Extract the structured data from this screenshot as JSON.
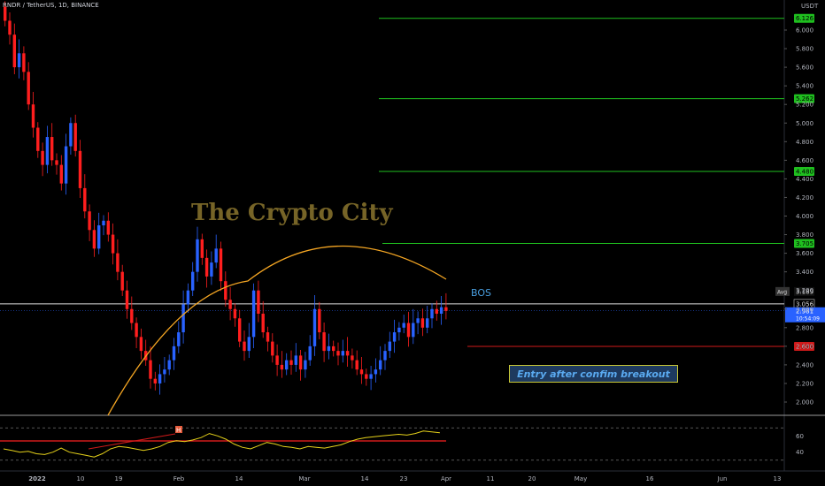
{
  "header": {
    "symbol_line": "RNDR / TetherUS, 1D, BINANCE"
  },
  "watermark": {
    "text": "The Crypto City"
  },
  "annotations": {
    "bos": "BOS",
    "entry": "Entry after confim breakout"
  },
  "axis": {
    "unit": "USDT"
  },
  "colors": {
    "bull": "#2962ff",
    "bear": "#ff1e1e",
    "arc": "#f5a623",
    "target": "#1fbf1f",
    "stop": "#d01a1a",
    "rsi": "#e6d21a"
  },
  "chart_data": {
    "type": "candlestick",
    "y_ticks": [
      6.0,
      5.8,
      5.6,
      5.4,
      5.2,
      5.0,
      4.8,
      4.6,
      4.4,
      4.2,
      4.0,
      3.8,
      3.6,
      3.4,
      3.2,
      3.0,
      2.8,
      2.6,
      2.4,
      2.2,
      2.0
    ],
    "x_ticks": [
      "2022",
      "10",
      "19",
      "Feb",
      "14",
      "Mar",
      "14",
      "23",
      "Apr",
      "11",
      "20",
      "May",
      "16",
      "Jun",
      "13"
    ],
    "price_levels": [
      {
        "label": "6.126",
        "value": 6.126,
        "kind": "target"
      },
      {
        "label": "5.262",
        "value": 5.262,
        "kind": "target"
      },
      {
        "label": "4.480",
        "value": 4.48,
        "kind": "target"
      },
      {
        "label": "3.705",
        "value": 3.705,
        "kind": "target"
      },
      {
        "label": "2.599",
        "value": 2.599,
        "kind": "stop"
      }
    ],
    "current": {
      "avg_label": "Avg",
      "avg_value": "3.189",
      "bos_value": "3.056",
      "last": "2.981",
      "countdown": "10:54:09"
    },
    "closes": [
      6.1,
      5.95,
      5.6,
      5.75,
      5.55,
      5.2,
      4.95,
      4.7,
      4.55,
      4.85,
      4.6,
      4.55,
      4.35,
      4.75,
      5.0,
      4.7,
      4.3,
      4.05,
      3.85,
      3.65,
      3.9,
      3.95,
      3.8,
      3.6,
      3.4,
      3.2,
      3.0,
      2.85,
      2.7,
      2.55,
      2.45,
      2.25,
      2.2,
      2.3,
      2.35,
      2.45,
      2.6,
      2.75,
      3.05,
      3.2,
      3.4,
      3.75,
      3.55,
      3.35,
      3.5,
      3.65,
      3.3,
      3.1,
      3.0,
      2.9,
      2.65,
      2.55,
      2.7,
      3.2,
      2.95,
      2.75,
      2.65,
      2.5,
      2.4,
      2.35,
      2.45,
      2.4,
      2.5,
      2.35,
      2.45,
      2.6,
      3.0,
      2.75,
      2.55,
      2.6,
      2.55,
      2.5,
      2.55,
      2.5,
      2.45,
      2.35,
      2.3,
      2.25,
      2.3,
      2.35,
      2.45,
      2.55,
      2.65,
      2.75,
      2.8,
      2.85,
      2.7,
      2.85,
      2.9,
      2.8,
      2.9,
      3.0,
      2.95,
      3.02,
      2.98
    ],
    "rsi": {
      "levels": [
        60,
        40
      ],
      "values": [
        44,
        42,
        40,
        41,
        38,
        37,
        40,
        45,
        40,
        38,
        36,
        34,
        38,
        44,
        47,
        46,
        44,
        42,
        44,
        47,
        52,
        54,
        53,
        55,
        58,
        63,
        60,
        56,
        50,
        46,
        44,
        48,
        52,
        50,
        47,
        46,
        44,
        47,
        46,
        45,
        47,
        49,
        53,
        56,
        58,
        59,
        60,
        61,
        62,
        61,
        63,
        66,
        65,
        64
      ]
    }
  }
}
